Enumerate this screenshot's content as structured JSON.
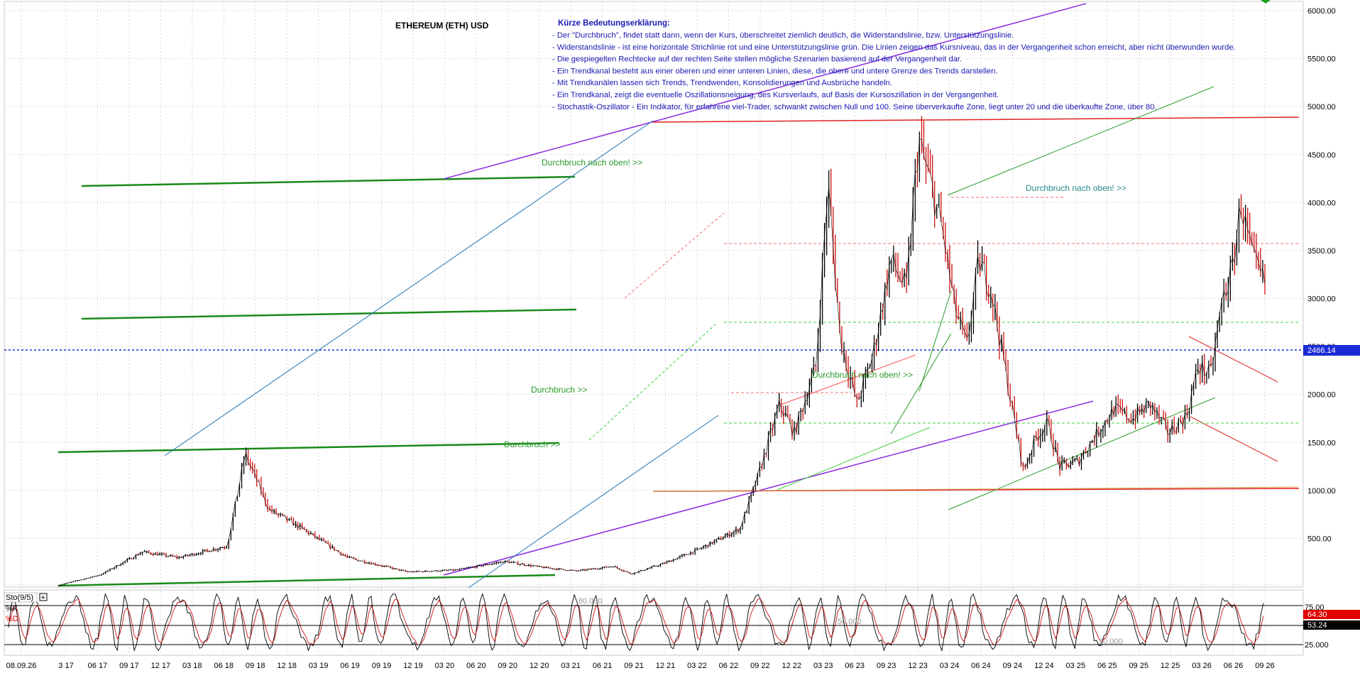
{
  "chart_data": {
    "type": "candlestick",
    "title": "ETHEREUM (ETH) USD",
    "legend_title": "Kürze Bedeutungserklärung:",
    "legend_lines": [
      "- Der \"Durchbruch\", findet statt dann, wenn der Kurs, überschreitet ziemlich deutlich, die Widerstandslinie, bzw. Unterstützungslinie.",
      "- Widerstandslinie - ist eine horizontale Strichlinie rot und eine Unterstützungslinie grün. Die Linien zeigen das Kursniveau, das in der Vergangenheit schon erreicht, aber nicht überwunden wurde.",
      "- Die gespiegelten Rechtecke auf der rechten Seite stellen mögliche Szenarien basierend auf der Vergangenheit dar.",
      "- Ein Trendkanal besteht aus einer oberen und einer unteren Linien, diese, die obere und untere Grenze des Trends darstellen.",
      "- Mit Trendkanälen lassen sich Trends, Trendwenden, Konsolidierungen und Ausbrüche handeln.",
      "- Ein Trendkanal, zeigt die eventuelle Oszillationsneigung, des Kursverlaufs, auf Basis der Kursoszillation in der Vergangenheit.",
      "- Stochastik-Oszillator - Ein Indikator, für erfahrene viel-Trader, schwankt zwischen Null und 100. Seine überverkaufte Zone, liegt unter 20 und die überkaufte Zone, über 80."
    ],
    "y_ticks": [
      "6000.00",
      "5500.00",
      "5000.00",
      "4500.00",
      "4000.00",
      "3500.00",
      "3000.00",
      "2500.00",
      "2000.00",
      "1500.00",
      "1000.00",
      "500.00"
    ],
    "ylim": [
      0,
      6100
    ],
    "x_ticks": [
      "08.09.26",
      "3 17",
      "06 17",
      "09 17",
      "12 17",
      "03 18",
      "06 18",
      "09 18",
      "12 18",
      "03 19",
      "06 19",
      "09 19",
      "12 19",
      "03 20",
      "06 20",
      "09 20",
      "12 20",
      "03 21",
      "06 21",
      "09 21",
      "12 21",
      "03 22",
      "06 22",
      "09 22",
      "12 22",
      "03 23",
      "06 23",
      "09 23",
      "12 23",
      "03 24",
      "06 24",
      "09 24",
      "12 24",
      "03 25",
      "06 25",
      "09 25",
      "12 25",
      "03 26",
      "06 26",
      "09 26"
    ],
    "current_price": "2466.14",
    "annotations": [
      "Durchbruch nach oben! >>",
      "Durchbruch nach oben! >>",
      "Durchbruch nach oben! >>",
      "Durchbruch >>",
      "Durchbruch >>"
    ],
    "price_path": [
      {
        "t": 0.0,
        "v": 10
      },
      {
        "t": 0.035,
        "v": 120
      },
      {
        "t": 0.07,
        "v": 360
      },
      {
        "t": 0.1,
        "v": 300
      },
      {
        "t": 0.14,
        "v": 420
      },
      {
        "t": 0.155,
        "v": 1380
      },
      {
        "t": 0.175,
        "v": 800
      },
      {
        "t": 0.2,
        "v": 620
      },
      {
        "t": 0.24,
        "v": 300
      },
      {
        "t": 0.29,
        "v": 150
      },
      {
        "t": 0.33,
        "v": 170
      },
      {
        "t": 0.37,
        "v": 260
      },
      {
        "t": 0.4,
        "v": 200
      },
      {
        "t": 0.43,
        "v": 160
      },
      {
        "t": 0.46,
        "v": 210
      },
      {
        "t": 0.475,
        "v": 130
      },
      {
        "t": 0.5,
        "v": 230
      },
      {
        "t": 0.53,
        "v": 380
      },
      {
        "t": 0.565,
        "v": 600
      },
      {
        "t": 0.58,
        "v": 1150
      },
      {
        "t": 0.598,
        "v": 1900
      },
      {
        "t": 0.61,
        "v": 1600
      },
      {
        "t": 0.628,
        "v": 2300
      },
      {
        "t": 0.638,
        "v": 4200
      },
      {
        "t": 0.648,
        "v": 2600
      },
      {
        "t": 0.662,
        "v": 1900
      },
      {
        "t": 0.675,
        "v": 2400
      },
      {
        "t": 0.69,
        "v": 3400
      },
      {
        "t": 0.703,
        "v": 3100
      },
      {
        "t": 0.713,
        "v": 4650
      },
      {
        "t": 0.723,
        "v": 4200
      },
      {
        "t": 0.733,
        "v": 3700
      },
      {
        "t": 0.743,
        "v": 2900
      },
      {
        "t": 0.753,
        "v": 2500
      },
      {
        "t": 0.763,
        "v": 3400
      },
      {
        "t": 0.773,
        "v": 3100
      },
      {
        "t": 0.783,
        "v": 2400
      },
      {
        "t": 0.79,
        "v": 1900
      },
      {
        "t": 0.8,
        "v": 1200
      },
      {
        "t": 0.81,
        "v": 1550
      },
      {
        "t": 0.82,
        "v": 1700
      },
      {
        "t": 0.83,
        "v": 1250
      },
      {
        "t": 0.845,
        "v": 1300
      },
      {
        "t": 0.86,
        "v": 1580
      },
      {
        "t": 0.875,
        "v": 1850
      },
      {
        "t": 0.89,
        "v": 1750
      },
      {
        "t": 0.905,
        "v": 1900
      },
      {
        "t": 0.92,
        "v": 1600
      },
      {
        "t": 0.935,
        "v": 1780
      },
      {
        "t": 0.945,
        "v": 2300
      },
      {
        "t": 0.955,
        "v": 2200
      },
      {
        "t": 0.965,
        "v": 3000
      },
      {
        "t": 0.973,
        "v": 3300
      },
      {
        "t": 0.98,
        "v": 4000
      },
      {
        "t": 0.99,
        "v": 3400
      },
      {
        "t": 1.0,
        "v": 3150
      }
    ]
  }
}
